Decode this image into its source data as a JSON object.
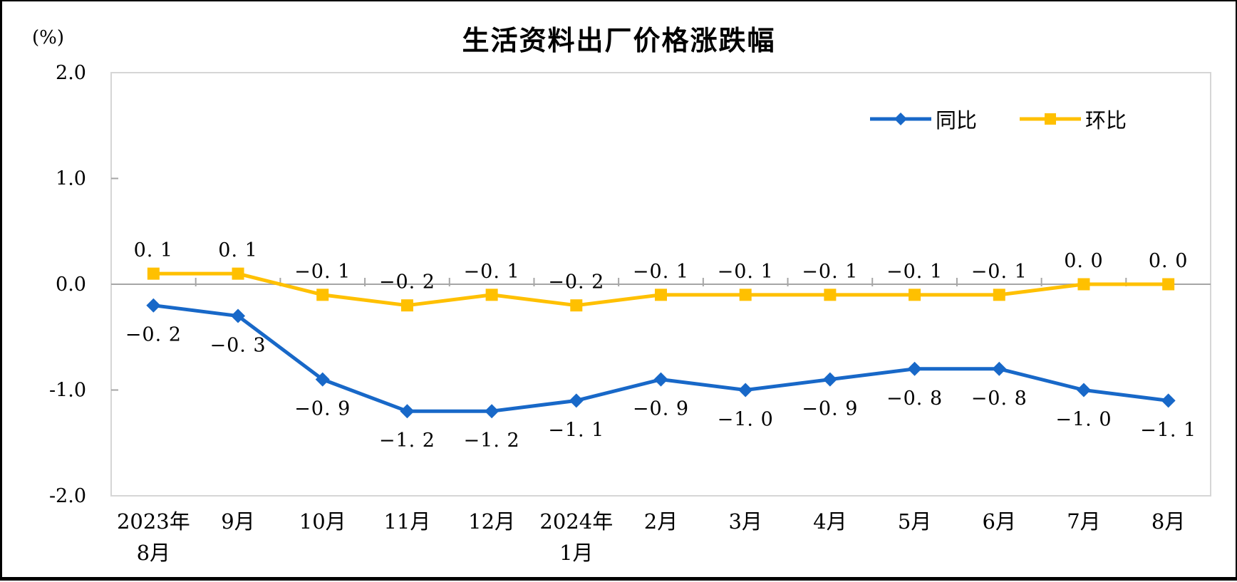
{
  "title": "生活资料出厂价格涨跌幅",
  "y_axis_unit_label": "(%)",
  "chart_data": {
    "type": "line",
    "title": "生活资料出厂价格涨跌幅",
    "categories": [
      [
        "2023年",
        "8月"
      ],
      [
        "9月"
      ],
      [
        "10月"
      ],
      [
        "11月"
      ],
      [
        "12月"
      ],
      [
        "2024年",
        "1月"
      ],
      [
        "2月"
      ],
      [
        "3月"
      ],
      [
        "4月"
      ],
      [
        "5月"
      ],
      [
        "6月"
      ],
      [
        "7月"
      ],
      [
        "8月"
      ]
    ],
    "series": [
      {
        "name": "同比",
        "color": "#1868C8",
        "marker": "diamond",
        "label_position": "below",
        "values": [
          -0.2,
          -0.3,
          -0.9,
          -1.2,
          -1.2,
          -1.1,
          -0.9,
          -1.0,
          -0.9,
          -0.8,
          -0.8,
          -1.0,
          -1.1
        ],
        "labels": [
          "−0. 2",
          "−0. 3",
          "−0. 9",
          "−1. 2",
          "−1. 2",
          "−1. 1",
          "−0. 9",
          "−1. 0",
          "−0. 9",
          "−0. 8",
          "−0. 8",
          "−1. 0",
          "−1. 1"
        ]
      },
      {
        "name": "环比",
        "color": "#FFC000",
        "marker": "square",
        "label_position": "above",
        "values": [
          0.1,
          0.1,
          -0.1,
          -0.2,
          -0.1,
          -0.2,
          -0.1,
          -0.1,
          -0.1,
          -0.1,
          -0.1,
          0.0,
          0.0
        ],
        "labels": [
          "0. 1",
          "0. 1",
          "−0. 1",
          "−0. 2",
          "−0. 1",
          "−0. 2",
          "−0. 1",
          "−0. 1",
          "−0. 1",
          "−0. 1",
          "−0. 1",
          "0. 0",
          "0. 0"
        ]
      }
    ],
    "ylabel": "(%)",
    "ylim": [
      -2.0,
      2.0
    ],
    "yticks": [
      "2.0",
      "1.0",
      "0.0",
      "-1.0",
      "-2.0"
    ],
    "grid": false,
    "legend_position": "top-right-inside"
  },
  "colors": {
    "axis_line": "#A6A6A6",
    "plot_border": "#D6D6D6",
    "text": "#000000",
    "background": "#FFFFFF",
    "frame": "#000000"
  }
}
